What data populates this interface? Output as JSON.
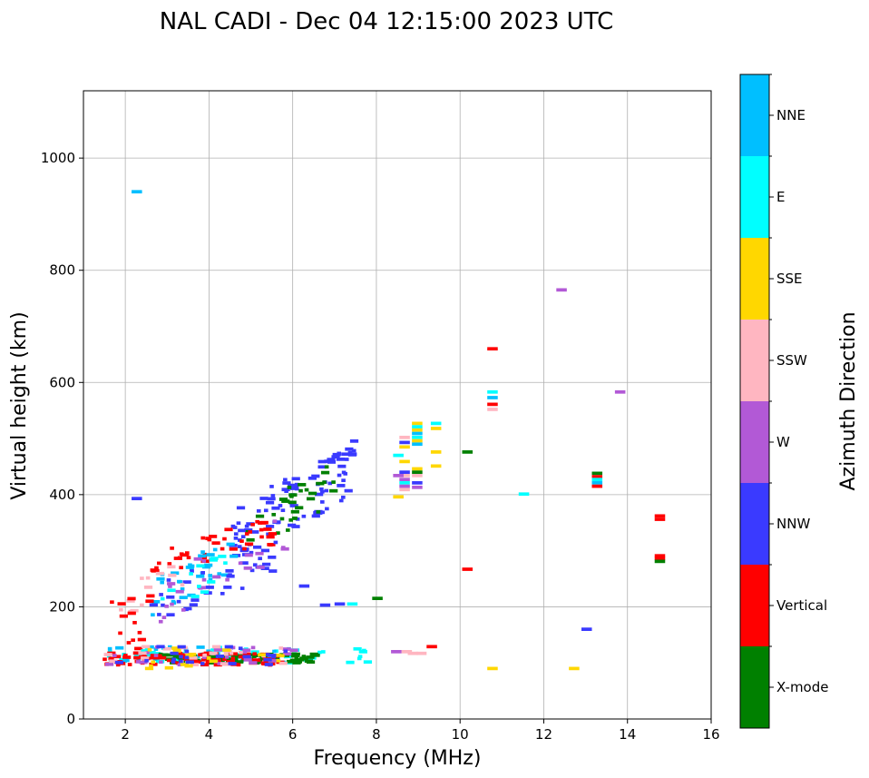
{
  "chart_data": {
    "type": "scatter",
    "title": "NAL CADI - Dec 04 12:15:00 2023 UTC",
    "xlabel": "Frequency (MHz)",
    "ylabel": "Virtual height (km)",
    "xlim": [
      1,
      16
    ],
    "ylim": [
      0,
      1120
    ],
    "xticks": [
      2,
      4,
      6,
      8,
      10,
      12,
      14,
      16
    ],
    "yticks": [
      0,
      200,
      400,
      600,
      800,
      1000
    ],
    "grid": true,
    "colorbar": {
      "label": "Azimuth Direction",
      "categories": [
        {
          "name": "X-mode",
          "color": "#008000"
        },
        {
          "name": "Vertical",
          "color": "#ff0000"
        },
        {
          "name": "NNW",
          "color": "#3a3aff"
        },
        {
          "name": "W",
          "color": "#b259d6"
        },
        {
          "name": "SSW",
          "color": "#ffb6c1"
        },
        {
          "name": "SSE",
          "color": "#ffd700"
        },
        {
          "name": "E",
          "color": "#00ffff"
        },
        {
          "name": "NNE",
          "color": "#00bfff"
        }
      ]
    },
    "points": [
      {
        "f": 2.2,
        "h": 940,
        "d": "NNE"
      },
      {
        "f": 2.2,
        "h": 393,
        "d": "NNW"
      },
      {
        "f": 12.35,
        "h": 765,
        "d": "W"
      },
      {
        "f": 13.75,
        "h": 583,
        "d": "W"
      },
      {
        "f": 10.7,
        "h": 660,
        "d": "Vertical"
      },
      {
        "f": 10.7,
        "h": 583,
        "d": "E"
      },
      {
        "f": 10.7,
        "h": 573,
        "d": "NNE"
      },
      {
        "f": 10.7,
        "h": 561,
        "d": "Vertical"
      },
      {
        "f": 10.7,
        "h": 552,
        "d": "SSW"
      },
      {
        "f": 10.1,
        "h": 476,
        "d": "X-mode"
      },
      {
        "f": 11.45,
        "h": 401,
        "d": "E"
      },
      {
        "f": 10.1,
        "h": 267,
        "d": "Vertical"
      },
      {
        "f": 10.7,
        "h": 90,
        "d": "SSE"
      },
      {
        "f": 12.65,
        "h": 90,
        "d": "SSE"
      },
      {
        "f": 12.95,
        "h": 160,
        "d": "NNW"
      },
      {
        "f": 9.25,
        "h": 129,
        "d": "Vertical"
      },
      {
        "f": 13.2,
        "h": 438,
        "d": "X-mode"
      },
      {
        "f": 13.2,
        "h": 432,
        "d": "Vertical"
      },
      {
        "f": 13.2,
        "h": 427,
        "d": "E"
      },
      {
        "f": 13.2,
        "h": 421,
        "d": "NNE"
      },
      {
        "f": 13.2,
        "h": 415,
        "d": "Vertical"
      },
      {
        "f": 14.7,
        "h": 362,
        "d": "Vertical"
      },
      {
        "f": 14.7,
        "h": 356,
        "d": "Vertical"
      },
      {
        "f": 14.7,
        "h": 291,
        "d": "Vertical"
      },
      {
        "f": 14.7,
        "h": 286,
        "d": "Vertical"
      },
      {
        "f": 14.7,
        "h": 281,
        "d": "X-mode"
      },
      {
        "f": 8.9,
        "h": 527,
        "d": "SSE"
      },
      {
        "f": 8.9,
        "h": 521,
        "d": "E"
      },
      {
        "f": 8.9,
        "h": 515,
        "d": "SSE"
      },
      {
        "f": 8.9,
        "h": 509,
        "d": "NNE"
      },
      {
        "f": 8.9,
        "h": 502,
        "d": "E"
      },
      {
        "f": 8.9,
        "h": 496,
        "d": "SSE"
      },
      {
        "f": 8.9,
        "h": 490,
        "d": "NNE"
      },
      {
        "f": 9.35,
        "h": 527,
        "d": "E"
      },
      {
        "f": 9.35,
        "h": 518,
        "d": "SSE"
      },
      {
        "f": 9.35,
        "h": 476,
        "d": "SSE"
      },
      {
        "f": 9.35,
        "h": 451,
        "d": "SSE"
      },
      {
        "f": 8.6,
        "h": 502,
        "d": "SSW"
      },
      {
        "f": 8.6,
        "h": 493,
        "d": "NNW"
      },
      {
        "f": 8.6,
        "h": 485,
        "d": "SSE"
      },
      {
        "f": 8.6,
        "h": 459,
        "d": "SSE"
      },
      {
        "f": 8.6,
        "h": 440,
        "d": "NNW"
      },
      {
        "f": 8.6,
        "h": 434,
        "d": "SSW"
      },
      {
        "f": 8.6,
        "h": 427,
        "d": "W"
      },
      {
        "f": 8.6,
        "h": 421,
        "d": "E"
      },
      {
        "f": 8.6,
        "h": 415,
        "d": "W"
      },
      {
        "f": 8.6,
        "h": 409,
        "d": "SSW"
      },
      {
        "f": 8.9,
        "h": 446,
        "d": "SSE"
      },
      {
        "f": 8.9,
        "h": 440,
        "d": "X-mode"
      },
      {
        "f": 8.9,
        "h": 434,
        "d": "SSW"
      },
      {
        "f": 8.9,
        "h": 421,
        "d": "NNW"
      },
      {
        "f": 8.9,
        "h": 413,
        "d": "W"
      },
      {
        "f": 8.45,
        "h": 470,
        "d": "E"
      },
      {
        "f": 8.45,
        "h": 434,
        "d": "W"
      },
      {
        "f": 8.45,
        "h": 396,
        "d": "SSE"
      },
      {
        "f": 8.65,
        "h": 120,
        "d": "SSW"
      },
      {
        "f": 8.8,
        "h": 117,
        "d": "SSW"
      },
      {
        "f": 9.0,
        "h": 117,
        "d": "SSW"
      },
      {
        "f": 8.4,
        "h": 120,
        "d": "W"
      },
      {
        "f": 7.95,
        "h": 215,
        "d": "X-mode"
      },
      {
        "f": 7.35,
        "h": 205,
        "d": "E"
      },
      {
        "f": 6.7,
        "h": 203,
        "d": "NNW"
      },
      {
        "f": 7.05,
        "h": 205,
        "d": "NNW"
      },
      {
        "f": 6.2,
        "h": 237,
        "d": "NNW"
      }
    ],
    "clusters": [
      {
        "d": "NNW",
        "f": [
          4.5,
          7.5
        ],
        "h": [
          280,
          500
        ],
        "n": 95
      },
      {
        "d": "X-mode",
        "f": [
          4.8,
          7.0
        ],
        "h": [
          290,
          460
        ],
        "n": 30
      },
      {
        "d": "Vertical",
        "f": [
          2.5,
          5.5
        ],
        "h": [
          250,
          360
        ],
        "n": 42
      },
      {
        "d": "NNE",
        "f": [
          2.6,
          4.6
        ],
        "h": [
          180,
          330
        ],
        "n": 32
      },
      {
        "d": "NNW",
        "f": [
          2.6,
          5.6
        ],
        "h": [
          170,
          320
        ],
        "n": 38
      },
      {
        "d": "W",
        "f": [
          2.8,
          5.8
        ],
        "h": [
          170,
          370
        ],
        "n": 22
      },
      {
        "d": "E",
        "f": [
          2.6,
          4.4
        ],
        "h": [
          180,
          300
        ],
        "n": 12
      },
      {
        "d": "SSW",
        "f": [
          1.7,
          3.4
        ],
        "h": [
          150,
          300
        ],
        "n": 12
      },
      {
        "d": "Vertical",
        "f": [
          1.6,
          2.6
        ],
        "h": [
          120,
          220
        ],
        "n": 14
      },
      {
        "d": "E",
        "f": [
          1.6,
          7.8
        ],
        "h": [
          100,
          128
        ],
        "n": 60
      },
      {
        "d": "NNE",
        "f": [
          1.6,
          6.2
        ],
        "h": [
          100,
          130
        ],
        "n": 25
      },
      {
        "d": "X-mode",
        "f": [
          2.8,
          6.5
        ],
        "h": [
          100,
          116
        ],
        "n": 90
      },
      {
        "d": "Vertical",
        "f": [
          1.5,
          6.0
        ],
        "h": [
          96,
          118
        ],
        "n": 75
      },
      {
        "d": "W",
        "f": [
          1.5,
          6.0
        ],
        "h": [
          96,
          130
        ],
        "n": 25
      },
      {
        "d": "SSW",
        "f": [
          1.5,
          6.0
        ],
        "h": [
          96,
          130
        ],
        "n": 25
      },
      {
        "d": "SSE",
        "f": [
          1.5,
          6.0
        ],
        "h": [
          90,
          130
        ],
        "n": 18
      },
      {
        "d": "NNW",
        "f": [
          1.5,
          6.0
        ],
        "h": [
          96,
          130
        ],
        "n": 25
      }
    ]
  }
}
